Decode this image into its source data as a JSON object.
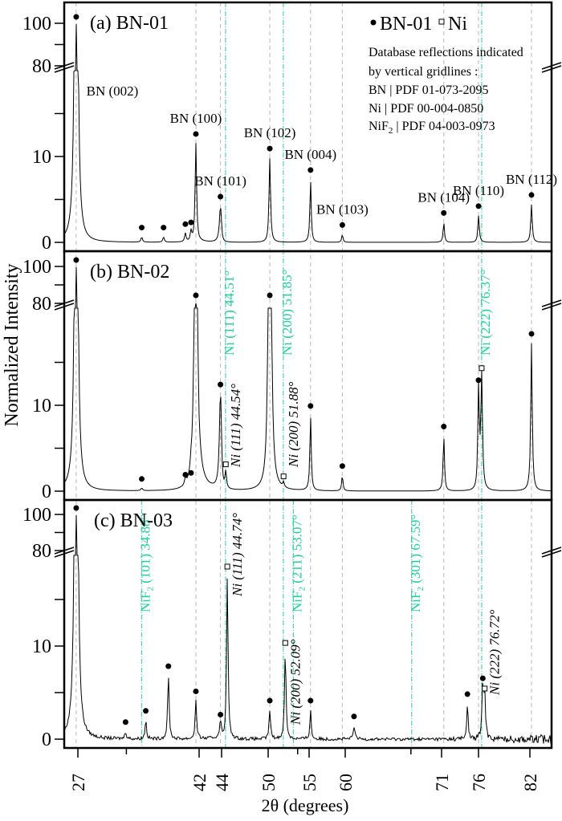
{
  "chart_data": {
    "type": "line",
    "title": "",
    "xlabel": "2θ (degrees)",
    "ylabel": "Normalized Intensity",
    "xlim": [
      22,
      86
    ],
    "x_ticks": [
      27,
      42,
      44,
      50,
      55,
      60,
      71,
      76,
      82
    ],
    "y_axis_break": {
      "lower": [
        0,
        20
      ],
      "upper": [
        80,
        100
      ]
    },
    "y_ticks_labeled": [
      0,
      10,
      80,
      100
    ],
    "legend": {
      "entries": [
        {
          "marker": "filled-circle",
          "label": "BN-01"
        },
        {
          "marker": "open-square",
          "label": "Ni"
        }
      ],
      "note_lines": [
        "Database reflections indicated",
        "by  vertical gridlines :",
        "BN | PDF 01-073-2095",
        "Ni | PDF 00-004-0850",
        "NiF2 | PDF 04-003-0973"
      ]
    },
    "reference_gridlines": {
      "BN": [
        26.8,
        41.6,
        43.9,
        50.2,
        55.2,
        59.6,
        71.3,
        76.0,
        82.2
      ],
      "Ni": [
        44.51,
        51.85,
        76.37
      ],
      "NiF2": [
        34.88,
        53.07,
        67.59
      ]
    },
    "panels": [
      {
        "id": "a",
        "label": "(a) BN-01",
        "peaks": [
          {
            "x": 26.8,
            "y": 100,
            "marker": "circle",
            "label": "BN (002)"
          },
          {
            "x": 34.9,
            "y": 0.6,
            "marker": "circle"
          },
          {
            "x": 37.6,
            "y": 0.6,
            "marker": "circle"
          },
          {
            "x": 40.3,
            "y": 1.0,
            "marker": "circle"
          },
          {
            "x": 41.0,
            "y": 1.2,
            "marker": "circle"
          },
          {
            "x": 41.6,
            "y": 11.5,
            "marker": "circle",
            "label": "BN (100)"
          },
          {
            "x": 43.9,
            "y": 4.2,
            "marker": "circle",
            "label": "BN (101)"
          },
          {
            "x": 50.2,
            "y": 9.8,
            "marker": "circle",
            "label": "BN (102)"
          },
          {
            "x": 55.2,
            "y": 7.3,
            "marker": "circle",
            "label": "BN (004)"
          },
          {
            "x": 59.6,
            "y": 0.9,
            "marker": "circle",
            "label": "BN (103)"
          },
          {
            "x": 71.3,
            "y": 2.3,
            "marker": "circle",
            "label": "BN (104)"
          },
          {
            "x": 76.0,
            "y": 3.1,
            "marker": "circle",
            "label": "BN (110)"
          },
          {
            "x": 82.2,
            "y": 4.4,
            "marker": "circle",
            "label": "BN (112)"
          }
        ],
        "annotations": []
      },
      {
        "id": "b",
        "label": "(b) BN-02",
        "peaks": [
          {
            "x": 26.8,
            "y": 100,
            "marker": "circle"
          },
          {
            "x": 34.9,
            "y": 0.3,
            "marker": "circle"
          },
          {
            "x": 40.3,
            "y": 0.8,
            "marker": "circle"
          },
          {
            "x": 41.0,
            "y": 1.0,
            "marker": "circle"
          },
          {
            "x": 41.6,
            "y": 80,
            "marker": "circle"
          },
          {
            "x": 43.9,
            "y": 11.3,
            "marker": "circle"
          },
          {
            "x": 44.54,
            "y": 2.0,
            "marker": "square"
          },
          {
            "x": 50.2,
            "y": 80,
            "marker": "circle"
          },
          {
            "x": 51.88,
            "y": 0.6,
            "marker": "square"
          },
          {
            "x": 55.2,
            "y": 8.8,
            "marker": "circle"
          },
          {
            "x": 59.6,
            "y": 1.8,
            "marker": "circle"
          },
          {
            "x": 71.3,
            "y": 6.4,
            "marker": "circle"
          },
          {
            "x": 76.0,
            "y": 11.8,
            "marker": "circle"
          },
          {
            "x": 76.37,
            "y": 13.2,
            "marker": "square"
          },
          {
            "x": 82.2,
            "y": 17.2,
            "marker": "circle"
          }
        ],
        "annotations": [
          {
            "text": "Ni (111) 44.51°",
            "color": "#1fd19a",
            "x": 44.51,
            "kind": "reference"
          },
          {
            "text": "Ni (200) 51.85°",
            "color": "#1fd19a",
            "x": 51.85,
            "kind": "reference"
          },
          {
            "text": "Ni (222) 76.37°",
            "color": "#1fd19a",
            "x": 76.37,
            "kind": "reference"
          },
          {
            "text": "Ni (111) 44.54°",
            "color": "#000000",
            "x": 44.54,
            "kind": "measured"
          },
          {
            "text": "Ni (200) 51.88°",
            "color": "#000000",
            "x": 51.88,
            "kind": "measured"
          }
        ]
      },
      {
        "id": "c",
        "label": "(c) BN-03",
        "peaks": [
          {
            "x": 26.8,
            "y": 100,
            "marker": "circle"
          },
          {
            "x": 32.9,
            "y": 0.8,
            "marker": "circle"
          },
          {
            "x": 35.4,
            "y": 2.0,
            "marker": "circle"
          },
          {
            "x": 38.2,
            "y": 6.8,
            "marker": "circle"
          },
          {
            "x": 41.6,
            "y": 4.1,
            "marker": "circle"
          },
          {
            "x": 43.9,
            "y": 1.6,
            "marker": "circle"
          },
          {
            "x": 44.74,
            "y": 17.5,
            "marker": "square"
          },
          {
            "x": 50.2,
            "y": 3.1,
            "marker": "circle"
          },
          {
            "x": 52.09,
            "y": 9.3,
            "marker": "square"
          },
          {
            "x": 55.2,
            "y": 3.1,
            "marker": "circle"
          },
          {
            "x": 61.0,
            "y": 1.4,
            "marker": "circle"
          },
          {
            "x": 74.5,
            "y": 3.8,
            "marker": "circle"
          },
          {
            "x": 76.5,
            "y": 5.5,
            "marker": "circle"
          },
          {
            "x": 76.72,
            "y": 4.4,
            "marker": "square"
          }
        ],
        "annotations": [
          {
            "text": "NiF2 (101) 34.88°",
            "color": "#1fd19a",
            "x": 34.88,
            "kind": "reference"
          },
          {
            "text": "NiF2 (211) 53.07°",
            "color": "#1fd19a",
            "x": 53.07,
            "kind": "reference"
          },
          {
            "text": "NiF2 (301) 67.59°",
            "color": "#1fd19a",
            "x": 67.59,
            "kind": "reference"
          },
          {
            "text": "Ni (111) 44.74°",
            "color": "#000000",
            "x": 44.74,
            "kind": "measured"
          },
          {
            "text": "Ni (200) 52.09°",
            "color": "#000000",
            "x": 52.09,
            "kind": "measured"
          },
          {
            "text": "Ni (222) 76.72°",
            "color": "#000000",
            "x": 76.72,
            "kind": "measured"
          }
        ]
      }
    ]
  },
  "colors": {
    "reference_line": "#1fd19a",
    "bn_gridline": "#b8b8b8",
    "trace": "#000000"
  }
}
